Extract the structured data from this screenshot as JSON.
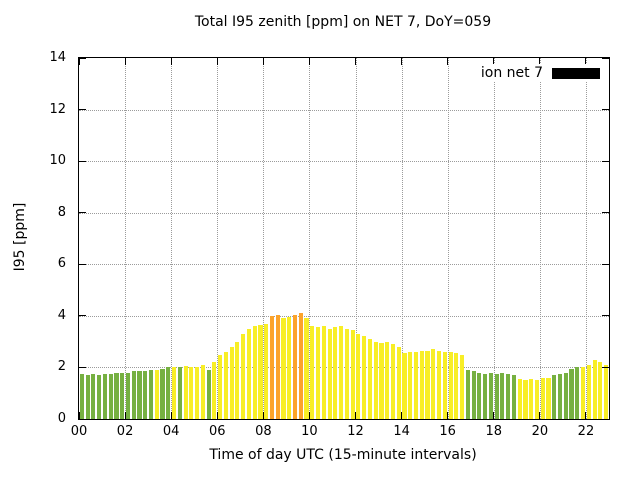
{
  "legend": {
    "label": "ion net 7",
    "swatch_color": "#000000",
    "position": "top-right"
  },
  "chart_data": {
    "type": "bar",
    "title": "Total I95 zenith [ppm] on NET 7, DoY=059",
    "xlabel": "Time of day UTC (15-minute intervals)",
    "ylabel": "I95 [ppm]",
    "xlim": [
      0,
      23
    ],
    "ylim": [
      0,
      14
    ],
    "grid": true,
    "interval_minutes": 15,
    "x_ticks": [
      0,
      2,
      4,
      6,
      8,
      10,
      12,
      14,
      16,
      18,
      20,
      22
    ],
    "x_tick_labels": [
      "00",
      "02",
      "04",
      "06",
      "08",
      "10",
      "12",
      "14",
      "16",
      "18",
      "20",
      "22"
    ],
    "y_ticks": [
      0,
      2,
      4,
      6,
      8,
      10,
      12,
      14
    ],
    "y_tick_labels": [
      "0",
      "2",
      "4",
      "6",
      "8",
      "10",
      "12",
      "14"
    ],
    "legend_entries": [
      "ion net 7"
    ],
    "colors": {
      "g": "#76b041",
      "y": "#f8ee26",
      "o": "#fca32a"
    },
    "times": [
      "00:00",
      "00:15",
      "00:30",
      "00:45",
      "01:00",
      "01:15",
      "01:30",
      "01:45",
      "02:00",
      "02:15",
      "02:30",
      "02:45",
      "03:00",
      "03:15",
      "03:30",
      "03:45",
      "04:00",
      "04:15",
      "04:30",
      "04:45",
      "05:00",
      "05:15",
      "05:30",
      "05:45",
      "06:00",
      "06:15",
      "06:30",
      "06:45",
      "07:00",
      "07:15",
      "07:30",
      "07:45",
      "08:00",
      "08:15",
      "08:30",
      "08:45",
      "09:00",
      "09:15",
      "09:30",
      "09:45",
      "10:00",
      "10:15",
      "10:30",
      "10:45",
      "11:00",
      "11:15",
      "11:30",
      "11:45",
      "12:00",
      "12:15",
      "12:30",
      "12:45",
      "13:00",
      "13:15",
      "13:30",
      "13:45",
      "14:00",
      "14:15",
      "14:30",
      "14:45",
      "15:00",
      "15:15",
      "15:30",
      "15:45",
      "16:00",
      "16:15",
      "16:30",
      "16:45",
      "17:00",
      "17:15",
      "17:30",
      "17:45",
      "18:00",
      "18:15",
      "18:30",
      "18:45",
      "19:00",
      "19:15",
      "19:30",
      "19:45",
      "20:00",
      "20:15",
      "20:30",
      "20:45",
      "21:00",
      "21:15",
      "21:30",
      "21:45",
      "22:00",
      "22:15",
      "22:30",
      "22:45"
    ],
    "values": [
      1.75,
      1.7,
      1.75,
      1.7,
      1.75,
      1.75,
      1.8,
      1.8,
      1.8,
      1.85,
      1.85,
      1.85,
      1.9,
      1.9,
      1.95,
      2.0,
      2.0,
      2.0,
      2.05,
      2.0,
      2.0,
      2.1,
      1.9,
      2.2,
      2.5,
      2.6,
      2.8,
      3.0,
      3.3,
      3.5,
      3.6,
      3.65,
      3.7,
      4.0,
      4.05,
      3.9,
      3.95,
      4.05,
      4.1,
      3.9,
      3.6,
      3.55,
      3.6,
      3.5,
      3.55,
      3.6,
      3.5,
      3.45,
      3.3,
      3.2,
      3.1,
      3.0,
      2.95,
      3.0,
      2.9,
      2.8,
      2.55,
      2.6,
      2.6,
      2.65,
      2.65,
      2.7,
      2.65,
      2.6,
      2.6,
      2.55,
      2.5,
      1.9,
      1.85,
      1.8,
      1.75,
      1.8,
      1.75,
      1.8,
      1.75,
      1.7,
      1.55,
      1.5,
      1.55,
      1.5,
      1.6,
      1.6,
      1.7,
      1.75,
      1.8,
      1.95,
      2.0,
      2.0,
      2.1,
      2.3,
      2.2,
      2.1
    ],
    "levels": [
      "g",
      "g",
      "g",
      "g",
      "g",
      "g",
      "g",
      "g",
      "g",
      "g",
      "g",
      "g",
      "g",
      "y",
      "g",
      "g",
      "y",
      "g",
      "y",
      "y",
      "y",
      "y",
      "g",
      "y",
      "y",
      "y",
      "y",
      "y",
      "y",
      "y",
      "y",
      "y",
      "y",
      "o",
      "o",
      "y",
      "y",
      "o",
      "o",
      "y",
      "y",
      "y",
      "y",
      "y",
      "y",
      "y",
      "y",
      "y",
      "y",
      "y",
      "y",
      "y",
      "y",
      "y",
      "y",
      "y",
      "y",
      "y",
      "y",
      "y",
      "y",
      "y",
      "y",
      "y",
      "y",
      "y",
      "y",
      "g",
      "g",
      "g",
      "g",
      "g",
      "g",
      "g",
      "g",
      "g",
      "y",
      "y",
      "y",
      "y",
      "y",
      "y",
      "g",
      "g",
      "g",
      "g",
      "g",
      "y",
      "y",
      "y",
      "y",
      "y"
    ]
  }
}
